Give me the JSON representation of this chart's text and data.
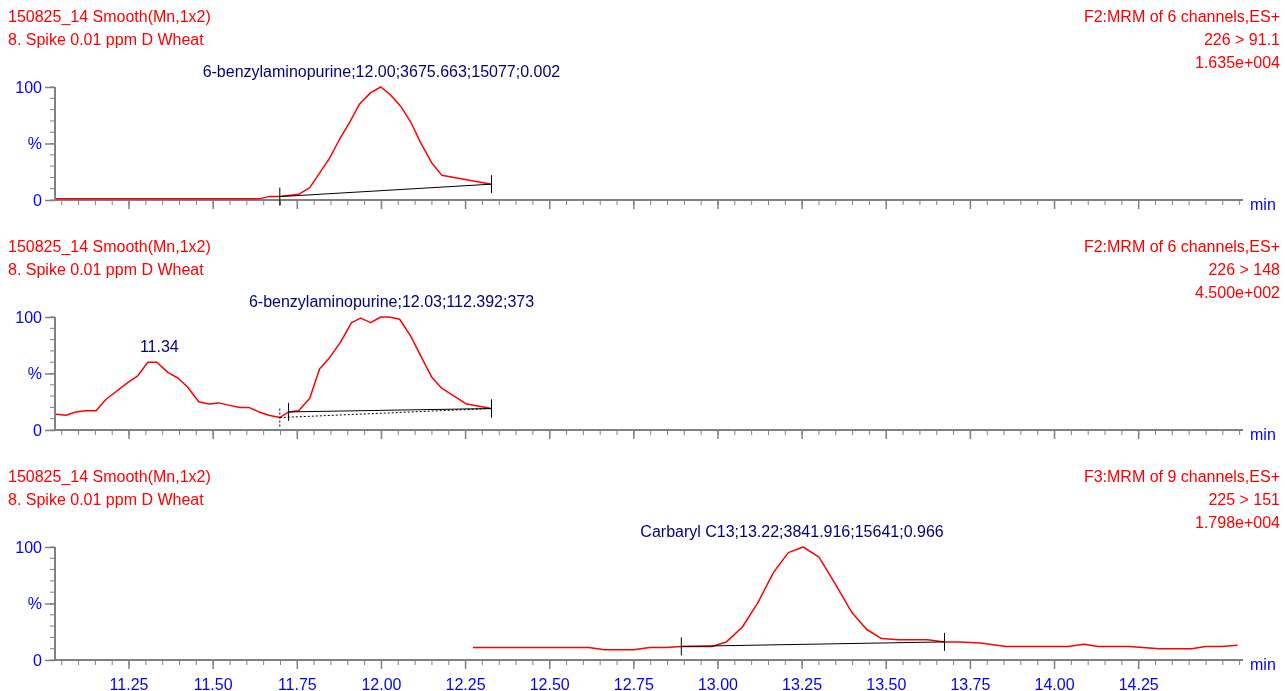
{
  "chart_data": [
    {
      "type": "line",
      "title": "150825_14 Smooth(Mn,1x2)",
      "subtitle": "8. Spike 0.01 ppm D Wheat",
      "xlabel": "min",
      "xlim": [
        11.03,
        14.56
      ],
      "xticks": [
        11.25,
        11.5,
        11.75,
        12,
        12.25,
        12.5,
        12.75,
        13,
        13.25,
        13.5,
        13.75,
        14,
        14.25
      ],
      "ylim": [
        0,
        100
      ],
      "yticks": [
        {
          "value": 0,
          "label": "0"
        },
        {
          "value": 50,
          "label": "%"
        },
        {
          "value": 100,
          "label": "100"
        }
      ],
      "tick_labels": "y",
      "marker": "none",
      "annotations": [
        "F2:MRM of 6 channels,ES+",
        "226 > 91.1",
        "1.635e+004",
        {
          "text": "6-benzylaminopurine;12.00;3675.663;15077;0.002",
          "x": 12.0,
          "y": 100
        }
      ],
      "series": [
        {
          "color": "#ff0000",
          "x": [
            11.033,
            11.636,
            11.665,
            11.698,
            11.754,
            11.787,
            11.846,
            11.876,
            11.906,
            11.935,
            11.968,
            11.998,
            12.027,
            12.057,
            12.087,
            12.116,
            12.149,
            12.179,
            12.327
          ],
          "values": [
            1,
            1,
            3,
            3,
            5,
            11,
            37,
            54,
            69,
            85,
            95,
            100,
            93,
            83,
            69,
            51,
            33,
            22,
            14
          ]
        },
        {
          "color": "#000000",
          "line_style": "solid",
          "x": [
            11.698,
            12.327
          ],
          "values": [
            3,
            14
          ]
        }
      ]
    },
    {
      "type": "line",
      "title": "150825_14 Smooth(Mn,1x2)",
      "subtitle": "8. Spike 0.01 ppm D Wheat",
      "xlabel": "min",
      "xlim": [
        11.03,
        14.56
      ],
      "xticks": [
        11.25,
        11.5,
        11.75,
        12,
        12.25,
        12.5,
        12.75,
        13,
        13.25,
        13.5,
        13.75,
        14,
        14.25
      ],
      "ylim": [
        0,
        100
      ],
      "yticks": [
        {
          "value": 0,
          "label": "0"
        },
        {
          "value": 50,
          "label": "%"
        },
        {
          "value": 100,
          "label": "100"
        }
      ],
      "tick_labels": "y",
      "marker": "none",
      "annotations": [
        "F2:MRM of 6 channels,ES+",
        "226 > 148",
        "4.500e+002",
        {
          "text": "6-benzylaminopurine;12.03;112.392;373",
          "x": 12.03,
          "y": 100
        },
        {
          "text": "11.34",
          "x": 11.34,
          "y": 60
        }
      ],
      "series": [
        {
          "color": "#ff0000",
          "x": [
            11.033,
            11.063,
            11.092,
            11.122,
            11.152,
            11.181,
            11.246,
            11.276,
            11.306,
            11.333,
            11.365,
            11.395,
            11.424,
            11.457,
            11.487,
            11.516,
            11.546,
            11.579,
            11.606,
            11.636,
            11.665,
            11.698,
            11.724,
            11.754,
            11.787,
            11.816,
            11.846,
            11.879,
            11.911,
            11.938,
            11.968,
            11.998,
            12.024,
            12.054,
            12.087,
            12.116,
            12.149,
            12.179,
            12.253,
            12.327
          ],
          "values": [
            14,
            13,
            16,
            17,
            17,
            27,
            42,
            48,
            60,
            60,
            51,
            46,
            38,
            25,
            23,
            24,
            22,
            20,
            20,
            16,
            13,
            11,
            16,
            17,
            28,
            54,
            64,
            78,
            95,
            99,
            95,
            100,
            100,
            98,
            83,
            66,
            47,
            37,
            23,
            19
          ]
        },
        {
          "color": "#000000",
          "line_style": "solid",
          "x": [
            11.724,
            12.327
          ],
          "values": [
            16,
            19
          ]
        },
        {
          "color": "#000000",
          "line_style": "dotted",
          "x": [
            11.698,
            12.327
          ],
          "values": [
            11,
            19
          ]
        }
      ]
    },
    {
      "type": "line",
      "title": "150825_14 Smooth(Mn,1x2)",
      "subtitle": "8. Spike 0.01 ppm D Wheat",
      "xlabel": "min",
      "xlim": [
        11.03,
        14.56
      ],
      "xticks": [
        {
          "value": 11.25,
          "label": "11.25"
        },
        {
          "value": 11.5,
          "label": "11.50"
        },
        {
          "value": 11.75,
          "label": "11.75"
        },
        {
          "value": 12,
          "label": "12.00"
        },
        {
          "value": 12.25,
          "label": "12.25"
        },
        {
          "value": 12.5,
          "label": "12.50"
        },
        {
          "value": 12.75,
          "label": "12.75"
        },
        {
          "value": 13,
          "label": "13.00"
        },
        {
          "value": 13.25,
          "label": "13.25"
        },
        {
          "value": 13.5,
          "label": "13.50"
        },
        {
          "value": 13.75,
          "label": "13.75"
        },
        {
          "value": 14,
          "label": "14.00"
        },
        {
          "value": 14.25,
          "label": "14.25"
        }
      ],
      "ylim": [
        0,
        100
      ],
      "yticks": [
        {
          "value": 0,
          "label": "0"
        },
        {
          "value": 50,
          "label": "%"
        },
        {
          "value": 100,
          "label": "100"
        }
      ],
      "marker": "none",
      "annotations": [
        "F3:MRM of 9 channels,ES+",
        "225 > 151",
        "1.798e+004",
        {
          "text": "Carbaryl C13;13.22;3841.916;15641;0.966",
          "x": 13.22,
          "y": 100
        }
      ],
      "series": [
        {
          "color": "#ff0000",
          "x": [
            12.272,
            12.616,
            12.663,
            12.749,
            12.797,
            12.844,
            12.891,
            12.982,
            13.025,
            13.072,
            13.119,
            13.166,
            13.209,
            13.253,
            13.3,
            13.347,
            13.398,
            13.442,
            13.486,
            13.536,
            13.623,
            13.673,
            13.717,
            13.78,
            13.856,
            14.04,
            14.087,
            14.13,
            14.221,
            14.312,
            14.407,
            14.449,
            14.496,
            14.544
          ],
          "values": [
            11,
            11,
            9,
            9,
            11,
            11,
            12,
            12,
            16,
            29,
            51,
            78,
            95,
            100,
            91,
            68,
            42,
            27,
            19,
            18,
            18,
            16,
            16,
            15,
            12,
            12,
            14,
            12,
            12,
            10,
            10,
            12,
            12,
            13
          ]
        },
        {
          "color": "#000000",
          "line_style": "solid",
          "x": [
            12.891,
            13.673
          ],
          "values": [
            12,
            16
          ]
        }
      ]
    }
  ]
}
